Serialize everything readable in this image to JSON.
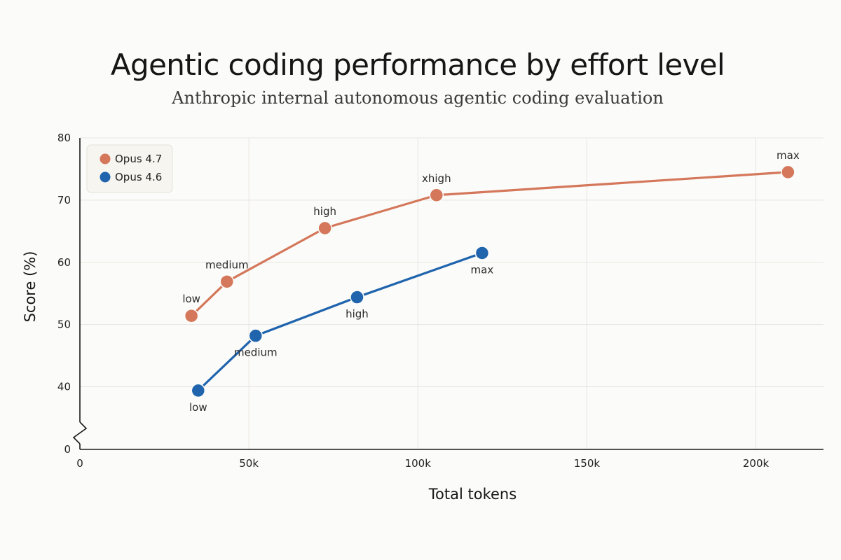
{
  "chart_data": {
    "type": "line",
    "title": "Agentic coding performance by effort level",
    "subtitle": "Anthropic internal autonomous agentic coding evaluation",
    "xlabel": "Total tokens",
    "ylabel": "Score (%)",
    "xlim": [
      0,
      220000
    ],
    "ylim": [
      0,
      80
    ],
    "y_axis_break": true,
    "y_broken_range": [
      0,
      35
    ],
    "x_ticks": [
      {
        "value": 0,
        "label": "0"
      },
      {
        "value": 50000,
        "label": "50k"
      },
      {
        "value": 100000,
        "label": "100k"
      },
      {
        "value": 150000,
        "label": "150k"
      },
      {
        "value": 200000,
        "label": "200k"
      }
    ],
    "y_ticks": [
      {
        "value": 0,
        "label": "0"
      },
      {
        "value": 40,
        "label": "40"
      },
      {
        "value": 50,
        "label": "50"
      },
      {
        "value": 60,
        "label": "60"
      },
      {
        "value": 70,
        "label": "70"
      },
      {
        "value": 80,
        "label": "80"
      }
    ],
    "grid": true,
    "legend_position": "top-left",
    "series": [
      {
        "name": "Opus 4.7",
        "color": "#d4775a",
        "label_side": "above",
        "points": [
          {
            "x": 33000,
            "y": 51.4,
            "label": "low"
          },
          {
            "x": 43500,
            "y": 56.9,
            "label": "medium"
          },
          {
            "x": 72500,
            "y": 65.5,
            "label": "high"
          },
          {
            "x": 105500,
            "y": 70.8,
            "label": "xhigh"
          },
          {
            "x": 209500,
            "y": 74.5,
            "label": "max"
          }
        ]
      },
      {
        "name": "Opus 4.6",
        "color": "#1f64ad",
        "label_side": "below",
        "points": [
          {
            "x": 35000,
            "y": 39.4,
            "label": "low"
          },
          {
            "x": 52000,
            "y": 48.2,
            "label": "medium"
          },
          {
            "x": 82000,
            "y": 54.4,
            "label": "high"
          },
          {
            "x": 119000,
            "y": 61.5,
            "label": "max"
          }
        ]
      }
    ]
  }
}
